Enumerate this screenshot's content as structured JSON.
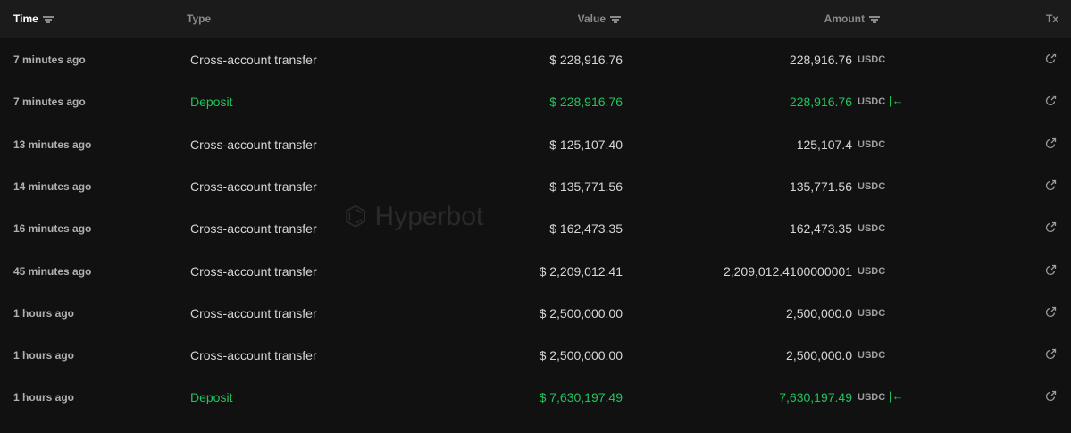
{
  "watermark": "Hyperbot",
  "colors": {
    "positive": "#21c35c",
    "text": "#d6d6d6",
    "header_bg": "#1b1b1b",
    "bg": "#111111"
  },
  "header": {
    "time": "Time",
    "type": "Type",
    "value": "Value",
    "amount": "Amount",
    "tx": "Tx"
  },
  "rows": [
    {
      "time": "7 minutes ago",
      "type": "Cross-account transfer",
      "value": "$ 228,916.76",
      "amount": "228,916.76",
      "unit": "USDC",
      "deposit": false
    },
    {
      "time": "7 minutes ago",
      "type": "Deposit",
      "value": "$ 228,916.76",
      "amount": "228,916.76",
      "unit": "USDC",
      "deposit": true
    },
    {
      "time": "13 minutes ago",
      "type": "Cross-account transfer",
      "value": "$ 125,107.40",
      "amount": "125,107.4",
      "unit": "USDC",
      "deposit": false
    },
    {
      "time": "14 minutes ago",
      "type": "Cross-account transfer",
      "value": "$ 135,771.56",
      "amount": "135,771.56",
      "unit": "USDC",
      "deposit": false
    },
    {
      "time": "16 minutes ago",
      "type": "Cross-account transfer",
      "value": "$ 162,473.35",
      "amount": "162,473.35",
      "unit": "USDC",
      "deposit": false
    },
    {
      "time": "45 minutes ago",
      "type": "Cross-account transfer",
      "value": "$ 2,209,012.41",
      "amount": "2,209,012.4100000001",
      "unit": "USDC",
      "deposit": false
    },
    {
      "time": "1 hours ago",
      "type": "Cross-account transfer",
      "value": "$ 2,500,000.00",
      "amount": "2,500,000.0",
      "unit": "USDC",
      "deposit": false
    },
    {
      "time": "1 hours ago",
      "type": "Cross-account transfer",
      "value": "$ 2,500,000.00",
      "amount": "2,500,000.0",
      "unit": "USDC",
      "deposit": false
    },
    {
      "time": "1 hours ago",
      "type": "Deposit",
      "value": "$ 7,630,197.49",
      "amount": "7,630,197.49",
      "unit": "USDC",
      "deposit": true
    }
  ]
}
